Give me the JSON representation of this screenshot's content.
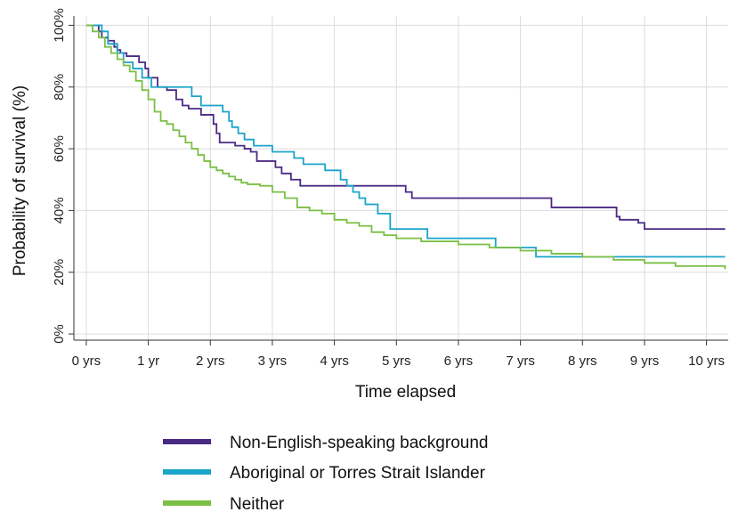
{
  "chart_data": {
    "type": "line",
    "title": "",
    "xlabel": "Time elapsed",
    "ylabel": "Probability of survival (%)",
    "xlim": [
      -0.2,
      10.35
    ],
    "ylim": [
      -2,
      103
    ],
    "x_ticks": [
      0,
      1,
      2,
      3,
      4,
      5,
      6,
      7,
      8,
      9,
      10
    ],
    "x_tick_labels": [
      "0 yrs",
      "1 yr",
      "2 yrs",
      "3 yrs",
      "4 yrs",
      "5 yrs",
      "6 yrs",
      "7 yrs",
      "8 yrs",
      "9 yrs",
      "10 yrs"
    ],
    "y_ticks": [
      0,
      20,
      40,
      60,
      80,
      100
    ],
    "y_tick_labels": [
      "0%",
      "20%",
      "40%",
      "60%",
      "80%",
      "100%"
    ],
    "grid": true,
    "legend_position": "bottom",
    "series": [
      {
        "name": "Non-English-speaking background",
        "color": "#4b2a85",
        "x": [
          0,
          0.2,
          0.25,
          0.35,
          0.45,
          0.5,
          0.55,
          0.65,
          0.85,
          0.95,
          1.0,
          1.15,
          1.3,
          1.45,
          1.55,
          1.65,
          1.85,
          2.05,
          2.1,
          2.15,
          2.4,
          2.55,
          2.65,
          2.75,
          3.05,
          3.15,
          3.3,
          3.45,
          3.65,
          4.25,
          4.45,
          4.6,
          4.85,
          5.0,
          5.15,
          5.25,
          6.6,
          7.1,
          7.5,
          7.6,
          8.15,
          8.55,
          8.6,
          8.9,
          9.0,
          10.3
        ],
        "y": [
          100,
          98,
          96,
          95,
          93,
          92,
          91,
          90,
          88,
          86,
          83,
          80,
          79,
          76,
          74,
          73,
          71,
          68,
          65,
          62,
          61,
          60,
          59,
          56,
          54,
          52,
          50,
          48,
          48,
          48,
          48,
          48,
          48,
          48,
          46,
          44,
          44,
          44,
          41,
          41,
          41,
          38,
          37,
          36,
          34,
          34
        ]
      },
      {
        "name": "Aboriginal or Torres Strait Islander",
        "color": "#1aa4c9",
        "x": [
          0,
          0.25,
          0.35,
          0.5,
          0.6,
          0.75,
          0.9,
          1.05,
          1.7,
          1.85,
          2.2,
          2.3,
          2.35,
          2.45,
          2.55,
          2.7,
          3.0,
          3.35,
          3.5,
          3.85,
          4.1,
          4.2,
          4.3,
          4.4,
          4.5,
          4.7,
          4.9,
          5.5,
          6.6,
          7.25,
          10.3
        ],
        "y": [
          100,
          98,
          94,
          91,
          88,
          86,
          83,
          80,
          77,
          74,
          72,
          69,
          67,
          65,
          63,
          61,
          59,
          57,
          55,
          53,
          50,
          48,
          46,
          44,
          42,
          39,
          34,
          31,
          28,
          25,
          25
        ]
      },
      {
        "name": "Neither",
        "color": "#7bbf45",
        "x": [
          0,
          0.1,
          0.2,
          0.3,
          0.4,
          0.5,
          0.6,
          0.7,
          0.8,
          0.9,
          1.0,
          1.1,
          1.2,
          1.3,
          1.4,
          1.5,
          1.6,
          1.7,
          1.8,
          1.9,
          2.0,
          2.1,
          2.2,
          2.3,
          2.4,
          2.5,
          2.6,
          2.8,
          3.0,
          3.2,
          3.4,
          3.6,
          3.8,
          4.0,
          4.2,
          4.4,
          4.6,
          4.8,
          5.0,
          5.4,
          6.0,
          6.5,
          7.0,
          7.5,
          8.0,
          8.5,
          9.0,
          9.5,
          10.0,
          10.3
        ],
        "y": [
          100,
          98,
          96,
          93,
          91,
          89,
          87,
          85,
          82,
          79,
          76,
          72,
          69,
          68,
          66,
          64,
          62,
          60,
          58,
          56,
          54,
          53,
          52,
          51,
          50,
          49,
          48.5,
          48,
          46,
          44,
          41,
          40,
          39,
          37,
          36,
          35,
          33,
          32,
          31,
          30,
          29,
          28,
          27,
          26,
          25,
          24,
          23,
          22,
          22,
          21
        ]
      }
    ]
  }
}
